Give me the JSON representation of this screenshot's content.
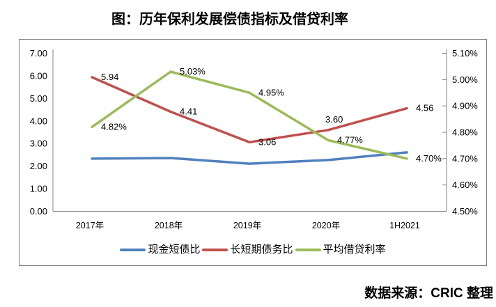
{
  "page": {
    "title": "图：历年保利发展偿债指标及借贷利率",
    "source": "数据来源：CRIC 整理"
  },
  "chart_data": {
    "type": "line",
    "title": "图：历年保利发展偿债指标及借贷利率",
    "categories": [
      "2017年",
      "2018年",
      "2019年",
      "2020年",
      "1H2021"
    ],
    "series": [
      {
        "name": "现金短债比",
        "axis": "left",
        "color": "#4F81BD",
        "values": [
          2.33,
          2.36,
          2.11,
          2.27,
          2.61
        ],
        "labels": [
          "",
          "",
          "",
          "",
          ""
        ]
      },
      {
        "name": "长短期债务比",
        "axis": "left",
        "color": "#C0504D",
        "values": [
          5.94,
          4.41,
          3.06,
          3.6,
          4.56
        ],
        "labels": [
          "5.94",
          "4.41",
          "3.06",
          "3.60",
          "4.56"
        ]
      },
      {
        "name": "平均借贷利率",
        "axis": "right",
        "color": "#9BBB59",
        "values": [
          4.82,
          5.03,
          4.95,
          4.77,
          4.7
        ],
        "labels": [
          "4.82%",
          "5.03%",
          "4.95%",
          "4.77%",
          "4.70%"
        ]
      }
    ],
    "left_axis": {
      "min": 0,
      "max": 7,
      "tick_labels": [
        "0.00",
        "1.00",
        "2.00",
        "3.00",
        "4.00",
        "5.00",
        "6.00",
        "7.00"
      ]
    },
    "right_axis": {
      "min": 4.5,
      "max": 5.1,
      "tick_labels": [
        "4.50%",
        "4.60%",
        "4.70%",
        "4.80%",
        "4.90%",
        "5.00%",
        "5.10%"
      ]
    },
    "grid": false,
    "legend_position": "bottom",
    "axis_color": "#808080",
    "text_color": "#000000"
  }
}
